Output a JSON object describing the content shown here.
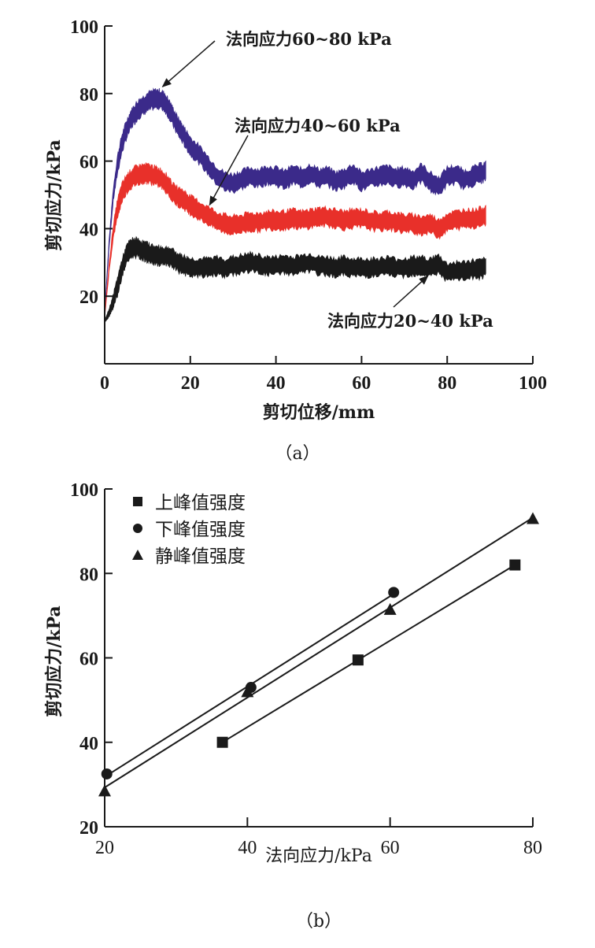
{
  "chart_data": [
    {
      "id": "a",
      "type": "line",
      "caption": "（a）",
      "title": "",
      "xlabel": "剪切位移/mm",
      "ylabel": "剪切应力/kPa",
      "xlim": [
        0,
        100
      ],
      "ylim": [
        0,
        100
      ],
      "xticks": [
        0,
        20,
        40,
        60,
        80,
        100
      ],
      "yticks": [
        20,
        40,
        60,
        80,
        100
      ],
      "grid": false,
      "series": [
        {
          "name": "法向应力60~80 kPa",
          "color": "#3b2a8a",
          "band_half_width": 2.2,
          "x": [
            0,
            1,
            2,
            3,
            4,
            5,
            6,
            7,
            8,
            9,
            10,
            11,
            12,
            13,
            14,
            15,
            16,
            17,
            18,
            19,
            20,
            22,
            24,
            26,
            28,
            30,
            32,
            34,
            36,
            38,
            40,
            42,
            44,
            46,
            48,
            50,
            52,
            54,
            56,
            58,
            60,
            62,
            64,
            66,
            68,
            70,
            72,
            74,
            76,
            78,
            80,
            82,
            84,
            86,
            88,
            89
          ],
          "y": [
            15,
            35,
            50,
            59,
            65,
            69,
            72,
            74,
            75.5,
            76.5,
            77.5,
            78,
            78.5,
            78.3,
            77.5,
            75.5,
            73,
            70.5,
            68.5,
            66.5,
            64.5,
            62,
            59,
            56,
            54,
            53.5,
            54.5,
            55.5,
            55,
            56,
            55.5,
            54.5,
            56,
            55,
            56.5,
            55,
            55.5,
            54,
            55,
            56.5,
            54,
            55,
            55.5,
            56,
            55,
            55.5,
            54.5,
            56.5,
            54,
            52.5,
            55.5,
            56,
            54.5,
            55.5,
            56.5,
            57
          ]
        },
        {
          "name": "法向应力40~60 kPa",
          "color": "#e8302a",
          "band_half_width": 2.2,
          "x": [
            0,
            1,
            2,
            3,
            4,
            5,
            6,
            7,
            8,
            9,
            10,
            11,
            12,
            13,
            14,
            15,
            16,
            17,
            18,
            19,
            20,
            22,
            24,
            26,
            28,
            30,
            32,
            34,
            36,
            38,
            40,
            42,
            44,
            46,
            48,
            50,
            52,
            54,
            56,
            58,
            60,
            62,
            64,
            66,
            68,
            70,
            72,
            74,
            76,
            78,
            80,
            82,
            84,
            86,
            88,
            89
          ],
          "y": [
            14,
            28,
            39,
            46,
            50.5,
            53,
            54.5,
            55.5,
            56,
            56.3,
            56.3,
            56,
            55.5,
            55,
            54,
            52.5,
            50.5,
            49.5,
            49,
            48,
            47,
            45.5,
            44,
            42.5,
            41.5,
            41,
            41.5,
            42,
            42,
            42.5,
            42.5,
            42.5,
            43,
            42.5,
            43,
            43.5,
            43.5,
            43,
            42.5,
            43,
            43,
            42.5,
            42,
            42.5,
            42,
            41.5,
            41.5,
            41,
            41.5,
            40,
            42,
            42.5,
            43,
            43,
            43.5,
            44
          ]
        },
        {
          "name": "法向应力20~40 kPa",
          "color": "#1a1a1a",
          "band_half_width": 2.2,
          "x": [
            0,
            1,
            2,
            3,
            4,
            5,
            6,
            7,
            8,
            9,
            10,
            11,
            12,
            13,
            14,
            15,
            16,
            17,
            18,
            19,
            20,
            22,
            24,
            26,
            28,
            30,
            32,
            34,
            36,
            38,
            40,
            42,
            44,
            46,
            48,
            50,
            52,
            54,
            56,
            58,
            60,
            62,
            64,
            66,
            68,
            70,
            72,
            74,
            76,
            78,
            80,
            82,
            84,
            86,
            88,
            89
          ],
          "y": [
            12.5,
            15,
            18.5,
            23,
            28,
            32,
            34,
            34.5,
            34,
            33.5,
            33,
            32.5,
            32,
            32,
            31.8,
            31.8,
            31,
            30,
            29.5,
            29,
            28.5,
            28.5,
            28.5,
            29,
            28.5,
            29,
            29.5,
            30,
            29.5,
            29,
            29,
            29.5,
            29,
            29.5,
            30,
            29,
            29,
            28.5,
            29,
            28.5,
            28.5,
            28.5,
            28.5,
            29,
            28.5,
            28.5,
            29,
            29,
            28.5,
            29.5,
            27,
            27.5,
            27.5,
            28,
            28,
            28.5
          ]
        }
      ],
      "annotations": [
        {
          "text": "法向应力60~80 kPa",
          "series": 0,
          "arrow_to": [
            13.5,
            82
          ]
        },
        {
          "text": "法向应力40~60 kPa",
          "series": 1,
          "arrow_to": [
            24.5,
            47
          ]
        },
        {
          "text": "法向应力20~40 kPa",
          "series": 2,
          "arrow_to": [
            75.5,
            26
          ]
        }
      ]
    },
    {
      "id": "b",
      "type": "scatter",
      "caption": "（b）",
      "title": "",
      "xlabel": "法向应力/kPa",
      "ylabel": "剪切应力/kPa",
      "xlim": [
        20,
        80
      ],
      "ylim": [
        20,
        100
      ],
      "xticks": [
        20,
        40,
        60,
        80
      ],
      "yticks": [
        20,
        40,
        60,
        80,
        100
      ],
      "grid": false,
      "legend_position": "top-left",
      "series": [
        {
          "name": "上峰值强度",
          "marker": "square",
          "x": [
            36.5,
            55.5,
            77.5
          ],
          "y": [
            40,
            59.5,
            82
          ],
          "fit_line": true
        },
        {
          "name": "下峰值强度",
          "marker": "circle",
          "x": [
            20.3,
            40.5,
            60.5
          ],
          "y": [
            32.5,
            53,
            75.5
          ],
          "fit_line": true
        },
        {
          "name": "静峰值强度",
          "marker": "triangle",
          "x": [
            20,
            40,
            60,
            80
          ],
          "y": [
            28.5,
            52,
            71.5,
            93
          ],
          "fit_line": true
        }
      ]
    }
  ]
}
